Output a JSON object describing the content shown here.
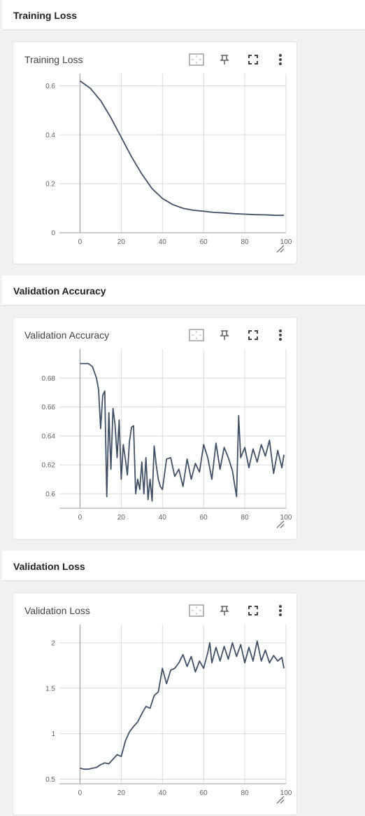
{
  "sections": [
    {
      "title": "Training Loss"
    },
    {
      "title": "Validation Accuracy"
    },
    {
      "title": "Validation Loss"
    }
  ],
  "icons": {
    "fit_domain": "fit-domain-icon",
    "pin": "pin-icon",
    "fullscreen": "fullscreen-icon",
    "more": "more-vert-icon",
    "resize": "resize-handle-icon"
  },
  "colors": {
    "line": "#425066",
    "grid": "#d9d9d9",
    "axis": "#9e9e9e"
  },
  "chart_data": [
    {
      "type": "line",
      "title": "Training Loss",
      "xlim": [
        -10,
        100
      ],
      "ylim": [
        0,
        0.65
      ],
      "xticks": [
        0,
        20,
        40,
        60,
        80,
        100
      ],
      "yticks": [
        0,
        0.2,
        0.4,
        0.6
      ],
      "ytick_labels": [
        "0",
        "0.2",
        "0.4",
        "0.6"
      ],
      "grid": true,
      "series": [
        {
          "x": [
            0,
            5,
            10,
            15,
            20,
            25,
            30,
            35,
            40,
            45,
            50,
            55,
            60,
            65,
            70,
            75,
            80,
            85,
            90,
            95,
            99
          ],
          "y": [
            0.62,
            0.59,
            0.54,
            0.47,
            0.39,
            0.31,
            0.24,
            0.18,
            0.14,
            0.115,
            0.1,
            0.092,
            0.088,
            0.083,
            0.081,
            0.078,
            0.076,
            0.074,
            0.073,
            0.071,
            0.071
          ]
        }
      ]
    },
    {
      "type": "line",
      "title": "Validation Accuracy",
      "xlim": [
        -10,
        100
      ],
      "ylim": [
        0.59,
        0.7
      ],
      "xticks": [
        0,
        20,
        40,
        60,
        80,
        100
      ],
      "yticks": [
        0.6,
        0.62,
        0.64,
        0.66,
        0.68
      ],
      "ytick_labels": [
        "0.6",
        "0.62",
        "0.64",
        "0.66",
        "0.68"
      ],
      "grid": true,
      "series": [
        {
          "x": [
            0,
            4,
            6,
            8,
            9,
            10,
            11,
            12,
            13,
            14,
            15,
            16,
            17,
            18,
            19,
            20,
            21,
            22,
            23,
            24,
            25,
            26,
            27,
            28,
            29,
            30,
            31,
            32,
            33,
            34,
            35,
            36,
            37,
            38,
            39,
            40,
            42,
            44,
            46,
            48,
            50,
            52,
            54,
            56,
            58,
            60,
            62,
            64,
            66,
            68,
            70,
            72,
            74,
            76,
            77,
            78,
            80,
            82,
            84,
            86,
            88,
            90,
            92,
            94,
            96,
            98,
            99
          ],
          "y": [
            0.69,
            0.69,
            0.688,
            0.68,
            0.672,
            0.645,
            0.668,
            0.671,
            0.598,
            0.656,
            0.617,
            0.659,
            0.648,
            0.625,
            0.651,
            0.61,
            0.634,
            0.624,
            0.613,
            0.636,
            0.646,
            0.647,
            0.6,
            0.61,
            0.603,
            0.622,
            0.6,
            0.625,
            0.596,
            0.61,
            0.595,
            0.633,
            0.62,
            0.61,
            0.605,
            0.603,
            0.624,
            0.625,
            0.612,
            0.617,
            0.605,
            0.624,
            0.61,
            0.621,
            0.615,
            0.634,
            0.625,
            0.61,
            0.635,
            0.617,
            0.632,
            0.625,
            0.616,
            0.598,
            0.654,
            0.625,
            0.632,
            0.618,
            0.631,
            0.622,
            0.634,
            0.626,
            0.637,
            0.614,
            0.63,
            0.618,
            0.627
          ]
        }
      ]
    },
    {
      "type": "line",
      "title": "Validation Loss",
      "xlim": [
        -10,
        100
      ],
      "ylim": [
        0.45,
        2.2
      ],
      "xticks": [
        0,
        20,
        40,
        60,
        80,
        100
      ],
      "yticks": [
        0.5,
        1,
        1.5,
        2
      ],
      "ytick_labels": [
        "0.5",
        "1",
        "1.5",
        "2"
      ],
      "grid": true,
      "series": [
        {
          "x": [
            0,
            2,
            4,
            6,
            8,
            10,
            12,
            14,
            16,
            18,
            20,
            22,
            24,
            26,
            28,
            30,
            32,
            34,
            36,
            38,
            40,
            42,
            44,
            46,
            48,
            50,
            52,
            54,
            56,
            58,
            60,
            62,
            63,
            64,
            66,
            68,
            70,
            72,
            74,
            76,
            78,
            80,
            82,
            84,
            86,
            88,
            90,
            92,
            94,
            96,
            98,
            99
          ],
          "y": [
            0.62,
            0.61,
            0.61,
            0.62,
            0.63,
            0.66,
            0.68,
            0.67,
            0.72,
            0.77,
            0.75,
            0.92,
            1.02,
            1.08,
            1.13,
            1.22,
            1.3,
            1.28,
            1.42,
            1.46,
            1.72,
            1.55,
            1.7,
            1.72,
            1.78,
            1.87,
            1.74,
            1.85,
            1.68,
            1.8,
            1.72,
            1.89,
            2.0,
            1.78,
            1.95,
            1.8,
            1.96,
            1.82,
            2.0,
            1.85,
            1.98,
            1.78,
            1.95,
            1.8,
            2.02,
            1.8,
            1.92,
            1.78,
            1.86,
            1.8,
            1.84,
            1.72
          ]
        }
      ]
    }
  ]
}
